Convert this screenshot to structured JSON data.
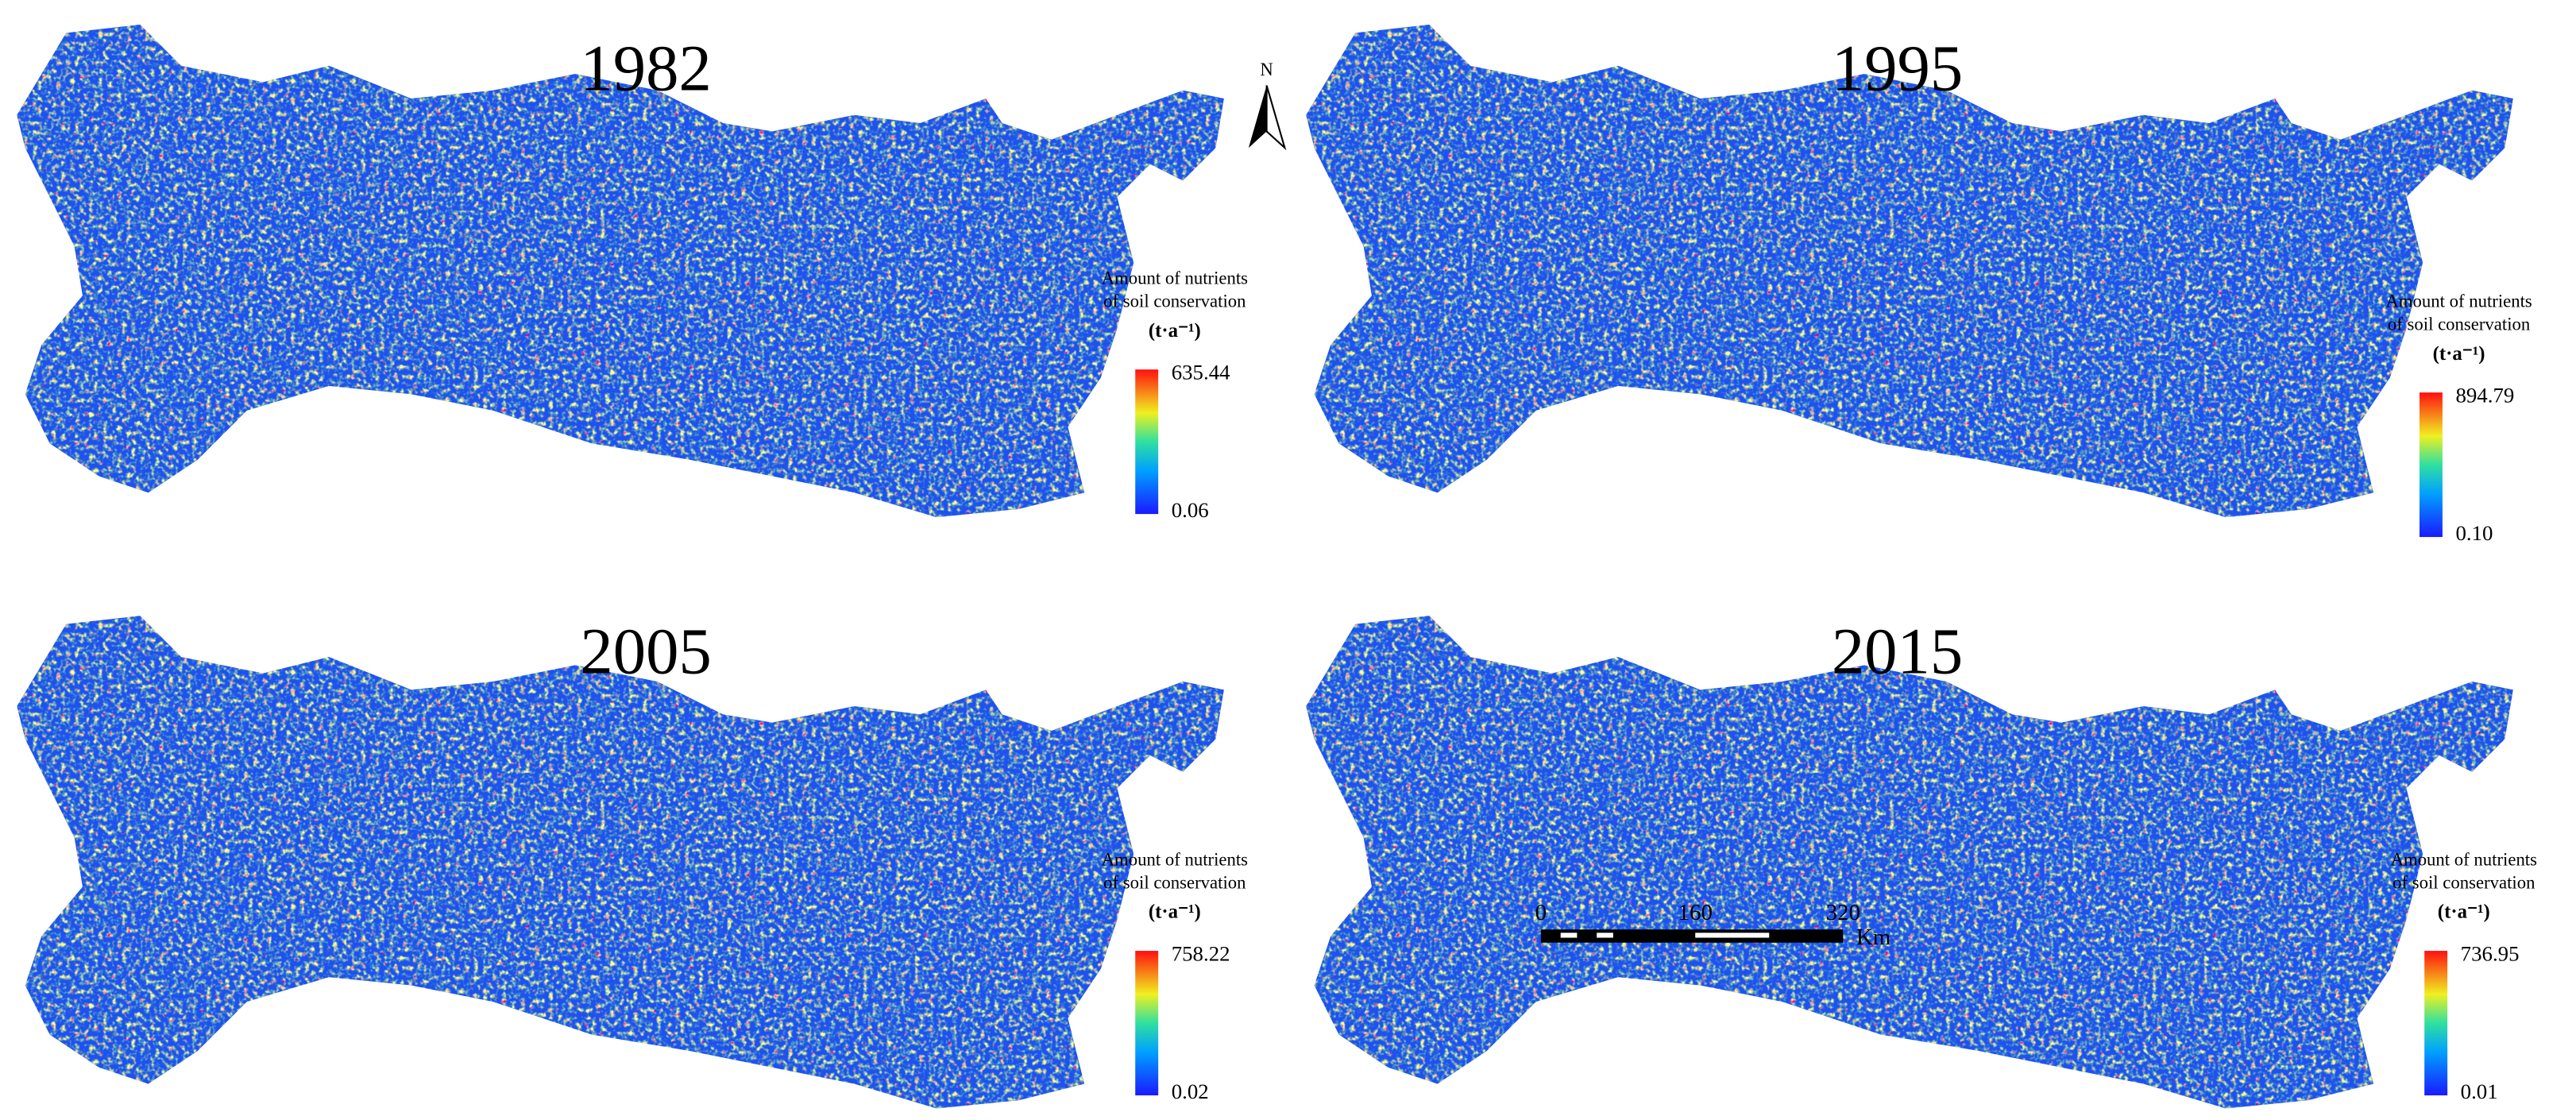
{
  "panels": [
    {
      "year": "1982",
      "legend": {
        "title": [
          "Amount of nutrients",
          "of soil conservation"
        ],
        "unit": "(t·a⁻¹)",
        "max": "635.44",
        "min": "0.06"
      }
    },
    {
      "year": "1995",
      "legend": {
        "title": [
          "Amount of nutrients",
          "of soil conservation"
        ],
        "unit": "(t·a⁻¹)",
        "max": "894.79",
        "min": "0.10"
      }
    },
    {
      "year": "2005",
      "legend": {
        "title": [
          "Amount of nutrients",
          "of soil conservation"
        ],
        "unit": "(t·a⁻¹)",
        "max": "758.22",
        "min": "0.02"
      }
    },
    {
      "year": "2015",
      "legend": {
        "title": [
          "Amount of nutrients",
          "of soil conservation"
        ],
        "unit": "(t·a⁻¹)",
        "max": "736.95",
        "min": "0.01"
      }
    }
  ],
  "north_arrow": "N",
  "scale_bar": {
    "labels": [
      "0",
      "160",
      "320"
    ],
    "unit": "Km"
  }
}
